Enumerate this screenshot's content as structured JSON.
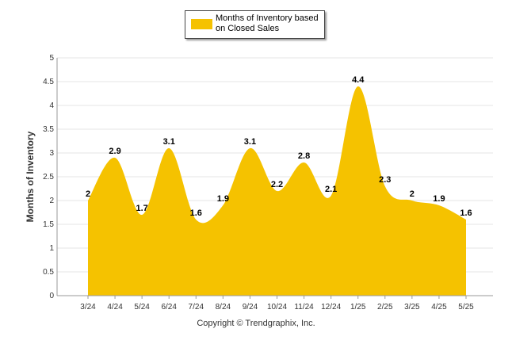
{
  "chart_data": {
    "type": "area",
    "categories": [
      "3/24",
      "4/24",
      "5/24",
      "6/24",
      "7/24",
      "8/24",
      "9/24",
      "10/24",
      "11/24",
      "12/24",
      "1/25",
      "2/25",
      "3/25",
      "4/25",
      "5/25"
    ],
    "series": [
      {
        "name": "Months of Inventory based on Closed Sales",
        "values": [
          2,
          2.9,
          1.7,
          3.1,
          1.6,
          1.9,
          3.1,
          2.2,
          2.8,
          2.1,
          4.4,
          2.3,
          2,
          1.9,
          1.6
        ],
        "color": "#F5C200"
      }
    ],
    "ylabel": "Months of Inventory",
    "xlabel": "",
    "ylim": [
      0,
      5
    ],
    "yticks": [
      0,
      0.5,
      1,
      1.5,
      2,
      2.5,
      3,
      3.5,
      4,
      4.5,
      5
    ],
    "grid": true,
    "legend_position": "top-center",
    "data_labels": [
      "2",
      "2.9",
      "1.7",
      "3.1",
      "1.6",
      "1.9",
      "3.1",
      "2.2",
      "2.8",
      "2.1",
      "4.4",
      "2.3",
      "2",
      "1.9",
      "1.6"
    ]
  },
  "footer": {
    "copyright": "Copyright © Trendgraphix, Inc."
  },
  "colors": {
    "area": "#F5C200",
    "grid": "#E6E6E6",
    "axis": "#999999"
  }
}
